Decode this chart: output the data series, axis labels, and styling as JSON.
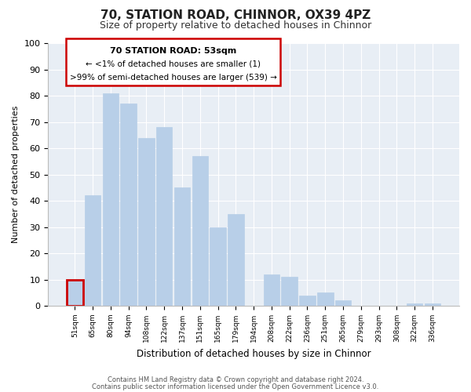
{
  "title": "70, STATION ROAD, CHINNOR, OX39 4PZ",
  "subtitle": "Size of property relative to detached houses in Chinnor",
  "xlabel": "Distribution of detached houses by size in Chinnor",
  "ylabel": "Number of detached properties",
  "footer_lines": [
    "Contains HM Land Registry data © Crown copyright and database right 2024.",
    "Contains public sector information licensed under the Open Government Licence v3.0."
  ],
  "bar_labels": [
    "51sqm",
    "65sqm",
    "80sqm",
    "94sqm",
    "108sqm",
    "122sqm",
    "137sqm",
    "151sqm",
    "165sqm",
    "179sqm",
    "194sqm",
    "208sqm",
    "222sqm",
    "236sqm",
    "251sqm",
    "265sqm",
    "279sqm",
    "293sqm",
    "308sqm",
    "322sqm",
    "336sqm"
  ],
  "bar_values": [
    10,
    42,
    81,
    77,
    64,
    68,
    45,
    57,
    30,
    35,
    0,
    12,
    11,
    4,
    5,
    2,
    0,
    0,
    0,
    1,
    1
  ],
  "bar_color_normal": "#b8cfe8",
  "bar_color_highlight": "#cc0000",
  "highlight_index": 0,
  "ylim": [
    0,
    100
  ],
  "yticks": [
    0,
    10,
    20,
    30,
    40,
    50,
    60,
    70,
    80,
    90,
    100
  ],
  "annotation_title": "70 STATION ROAD: 53sqm",
  "annotation_line1": "← <1% of detached houses are smaller (1)",
  "annotation_line2": ">99% of semi-detached houses are larger (539) →",
  "annotation_box_color": "#cc0000",
  "fig_bg_color": "#ffffff",
  "plot_bg_color": "#e8eef5"
}
